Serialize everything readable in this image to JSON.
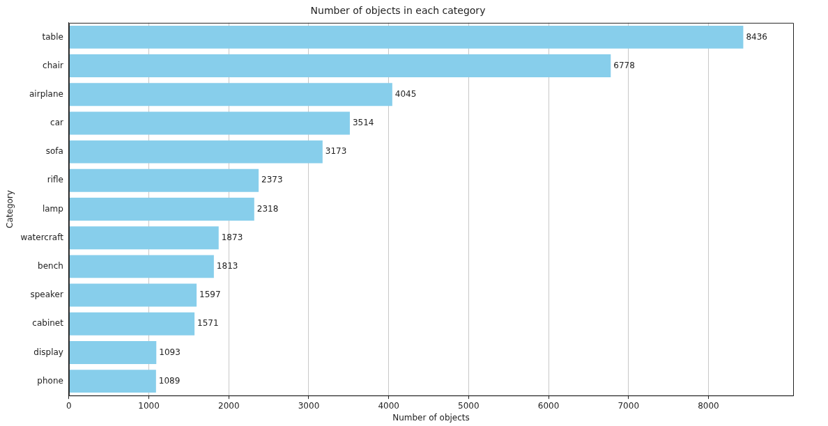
{
  "chart_data": {
    "type": "bar",
    "orientation": "horizontal",
    "title": "Number of objects in each category",
    "xlabel": "Number of objects",
    "ylabel": "Category",
    "categories": [
      "table",
      "chair",
      "airplane",
      "car",
      "sofa",
      "rifle",
      "lamp",
      "watercraft",
      "bench",
      "speaker",
      "cabinet",
      "display",
      "phone"
    ],
    "values": [
      8436,
      6778,
      4045,
      3514,
      3173,
      2373,
      2318,
      1873,
      1813,
      1597,
      1571,
      1093,
      1089
    ],
    "color": "#87ceeb",
    "data_labels": true,
    "grid": "x",
    "legend": false,
    "xlim": [
      0,
      9060
    ],
    "xticks": [
      0,
      1000,
      2000,
      3000,
      4000,
      5000,
      6000,
      7000,
      8000
    ]
  }
}
